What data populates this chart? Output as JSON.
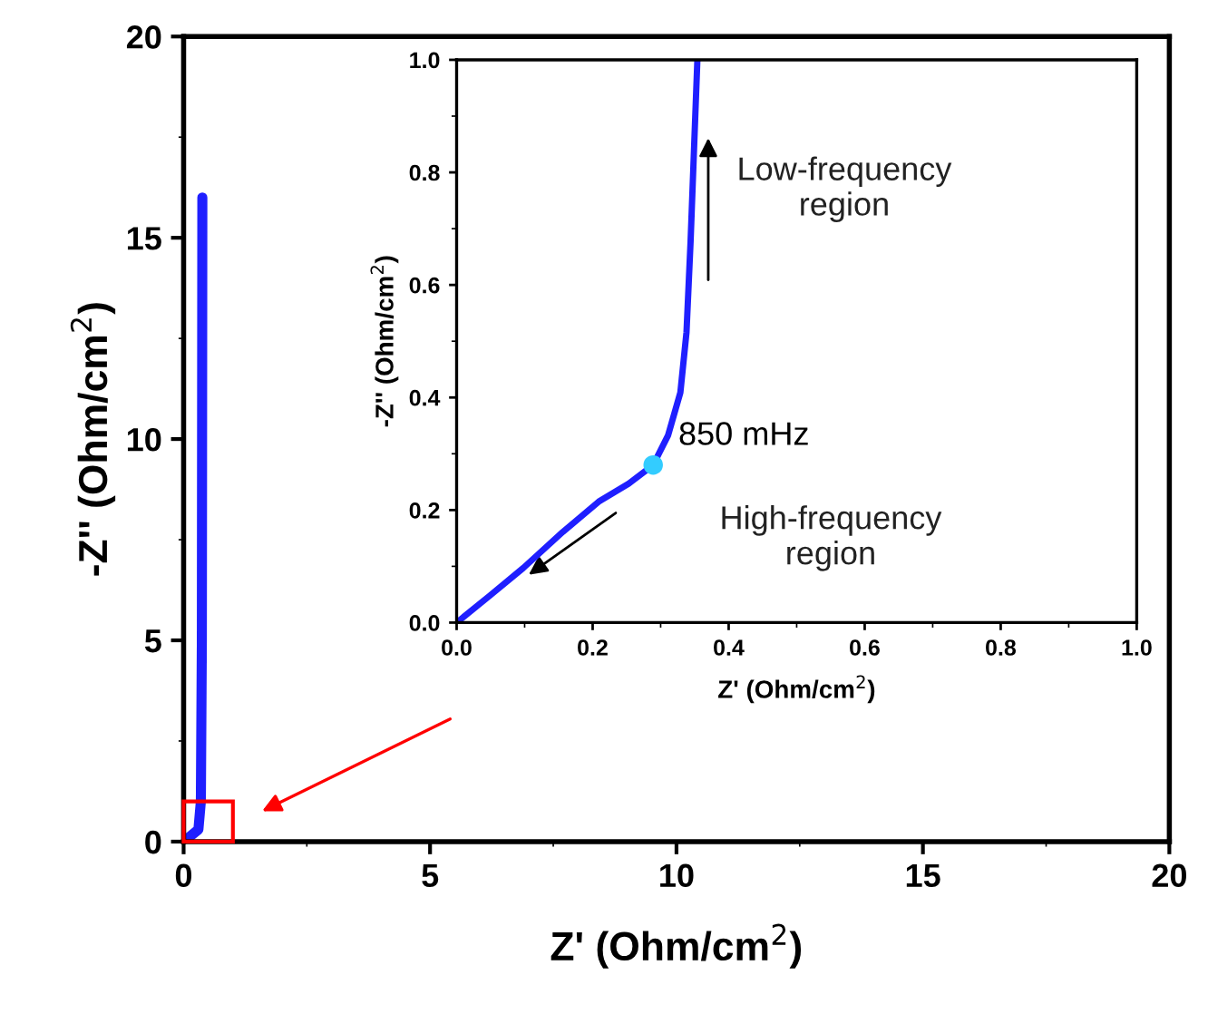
{
  "chart_data": [
    {
      "type": "line",
      "xlabel": "Z' (Ohm/cm$^{2}$)",
      "ylabel": "-Z'' (Ohm/cm$^{2}$)",
      "xlim": [
        0,
        20
      ],
      "ylim": [
        0,
        20
      ],
      "xticks": [
        0,
        5,
        10,
        15,
        20
      ],
      "yticks": [
        0,
        5,
        10,
        15,
        20
      ],
      "grid": false,
      "line_style": "solid",
      "series": [
        {
          "color": "#1f1fff",
          "x": [
            0,
            0.3,
            0.35,
            0.37,
            0.38
          ],
          "values": [
            0,
            0.3,
            1,
            5,
            16
          ]
        }
      ]
    },
    {
      "type": "line",
      "xlabel": "Z' (Ohm/cm$^{2}$)",
      "ylabel": "-Z'' (Ohm/cm$^{2}$)",
      "xlim": [
        0,
        1
      ],
      "ylim": [
        0,
        1
      ],
      "xticks": [
        {
          "value": 0,
          "label": "0.0"
        },
        0.2,
        0.4,
        0.6,
        0.8,
        {
          "value": 1,
          "label": "1.0"
        }
      ],
      "yticks": [
        {
          "value": 0,
          "label": "0.0"
        },
        0.2,
        0.4,
        0.6,
        0.8,
        {
          "value": 1,
          "label": "1.0"
        }
      ],
      "grid": false,
      "line_style": "solid",
      "annotations": [
        {
          "text": "850 mHz",
          "x": 0.289,
          "y": 0.28
        },
        "Low-frequency\nregion",
        "High-frequency\nregion"
      ],
      "series": [
        {
          "color": "#1f1fff",
          "x": [
            0,
            0.049,
            0.098,
            0.156,
            0.209,
            0.253,
            0.289,
            0.311,
            0.329,
            0.338,
            0.344,
            0.349,
            0.354
          ],
          "values": [
            0,
            0.048,
            0.097,
            0.161,
            0.215,
            0.247,
            0.28,
            0.333,
            0.409,
            0.516,
            0.677,
            0.839,
            1.0
          ]
        },
        {
          "type": "scatter",
          "color": "#33ccff",
          "marker": "circle",
          "x": [
            0.289
          ],
          "values": [
            0.28
          ]
        }
      ]
    }
  ]
}
